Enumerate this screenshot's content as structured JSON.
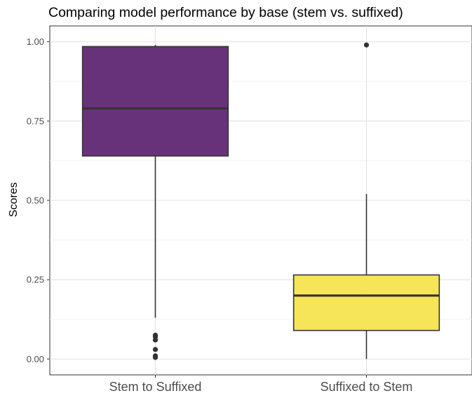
{
  "chart_data": {
    "type": "box",
    "title": "Comparing model performance by base (stem vs. suffixed)",
    "xlabel": "",
    "ylabel": "Scores",
    "ylim": [
      -0.05,
      1.05
    ],
    "yticks": [
      0.0,
      0.25,
      0.5,
      0.75,
      1.0
    ],
    "ytick_labels": [
      "0.00",
      "0.25",
      "0.50",
      "0.75",
      "1.00"
    ],
    "grid": true,
    "categories": [
      "Stem to Suffixed",
      "Suffixed to Stem"
    ],
    "boxes": [
      {
        "category": "Stem to Suffixed",
        "color": "#5B2170",
        "median": 0.79,
        "q1": 0.64,
        "q3": 0.985,
        "whisker_low": 0.13,
        "whisker_high": 0.99,
        "outliers": [
          0.075,
          0.07,
          0.06,
          0.03,
          0.01,
          0.005
        ]
      },
      {
        "category": "Suffixed to Stem",
        "color": "#F5E34A",
        "median": 0.2,
        "q1": 0.09,
        "q3": 0.265,
        "whisker_low": 0.0,
        "whisker_high": 0.52,
        "outliers": [
          0.99
        ]
      }
    ]
  }
}
